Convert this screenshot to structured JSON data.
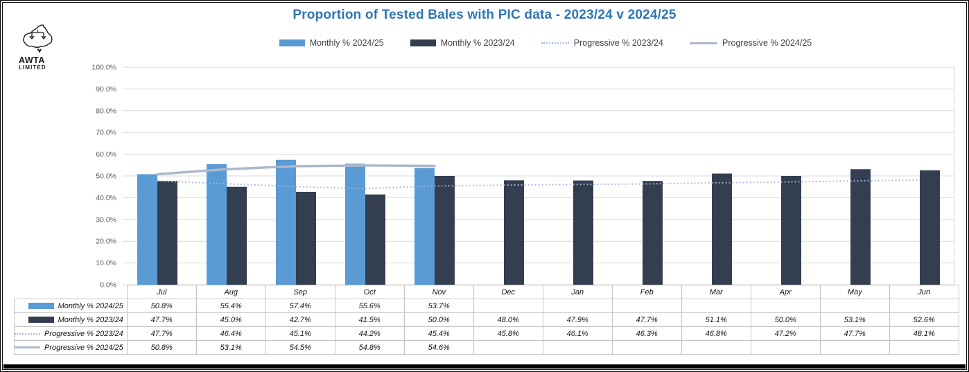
{
  "header": {
    "title": "Proportion of Tested Bales with PIC data - 2023/24 v 2024/25",
    "title_color": "#2E75B6"
  },
  "logo": {
    "line1": "AWTA",
    "line2": "LIMITED"
  },
  "legend": {
    "items": [
      {
        "label": "Monthly % 2024/25",
        "marker": "bar",
        "color": "#5B9BD5"
      },
      {
        "label": "Monthly % 2023/24",
        "marker": "bar",
        "color": "#333F50"
      },
      {
        "label": "Progressive % 2023/24",
        "marker": "dotted",
        "color": "#A3B5DA"
      },
      {
        "label": "Progressive % 2024/25",
        "marker": "solid",
        "color": "#ADB9CA"
      }
    ]
  },
  "chart_data": {
    "type": "bar",
    "title": "Proportion of Tested Bales with PIC data - 2023/24 v 2024/25",
    "categories": [
      "Jul",
      "Aug",
      "Sep",
      "Oct",
      "Nov",
      "Dec",
      "Jan",
      "Feb",
      "Mar",
      "Apr",
      "May",
      "Jun"
    ],
    "series": [
      {
        "name": "Monthly % 2024/25",
        "type": "bar",
        "color": "#5B9BD5",
        "values": [
          50.8,
          55.4,
          57.4,
          55.6,
          53.7,
          null,
          null,
          null,
          null,
          null,
          null,
          null
        ]
      },
      {
        "name": "Monthly % 2023/24",
        "type": "bar",
        "color": "#333F50",
        "values": [
          47.7,
          45.0,
          42.7,
          41.5,
          50.0,
          48.0,
          47.9,
          47.7,
          51.1,
          50.0,
          53.1,
          52.6
        ]
      },
      {
        "name": "Progressive % 2023/24",
        "type": "line",
        "line_style": "dotted",
        "color": "#A3B5DA",
        "values": [
          47.7,
          46.4,
          45.1,
          44.2,
          45.4,
          45.8,
          46.1,
          46.3,
          46.8,
          47.2,
          47.7,
          48.1
        ]
      },
      {
        "name": "Progressive % 2024/25",
        "type": "line",
        "line_style": "solid",
        "color": "#ADB9CA",
        "values": [
          50.8,
          53.1,
          54.5,
          54.8,
          54.6,
          null,
          null,
          null,
          null,
          null,
          null,
          null
        ]
      }
    ],
    "ylim": [
      0,
      100
    ],
    "ytick_labels": [
      "0.0%",
      "10.0%",
      "20.0%",
      "30.0%",
      "40.0%",
      "50.0%",
      "60.0%",
      "70.0%",
      "80.0%",
      "90.0%",
      "100.0%"
    ],
    "value_suffix": "%",
    "grid": true,
    "legend_position": "top",
    "gridline_color": "#D9D9D9",
    "axis_label_color": "#595959"
  },
  "table": {
    "columns": [
      "Jul",
      "Aug",
      "Sep",
      "Oct",
      "Nov",
      "Dec",
      "Jan",
      "Feb",
      "Mar",
      "Apr",
      "May",
      "Jun"
    ],
    "rows": [
      {
        "label": "Monthly % 2024/25",
        "marker": "bar",
        "color": "#5B9BD5",
        "values": [
          "50.8%",
          "55.4%",
          "57.4%",
          "55.6%",
          "53.7%",
          "",
          "",
          "",
          "",
          "",
          "",
          ""
        ]
      },
      {
        "label": "Monthly % 2023/24",
        "marker": "bar",
        "color": "#333F50",
        "values": [
          "47.7%",
          "45.0%",
          "42.7%",
          "41.5%",
          "50.0%",
          "48.0%",
          "47.9%",
          "47.7%",
          "51.1%",
          "50.0%",
          "53.1%",
          "52.6%"
        ]
      },
      {
        "label": "Progressive % 2023/24",
        "marker": "dotted",
        "color": "#A3B5DA",
        "values": [
          "47.7%",
          "46.4%",
          "45.1%",
          "44.2%",
          "45.4%",
          "45.8%",
          "46.1%",
          "46.3%",
          "46.8%",
          "47.2%",
          "47.7%",
          "48.1%"
        ]
      },
      {
        "label": "Progressive % 2024/25",
        "marker": "solid",
        "color": "#ADB9CA",
        "values": [
          "50.8%",
          "53.1%",
          "54.5%",
          "54.8%",
          "54.6%",
          "",
          "",
          "",
          "",
          "",
          "",
          ""
        ]
      }
    ]
  }
}
